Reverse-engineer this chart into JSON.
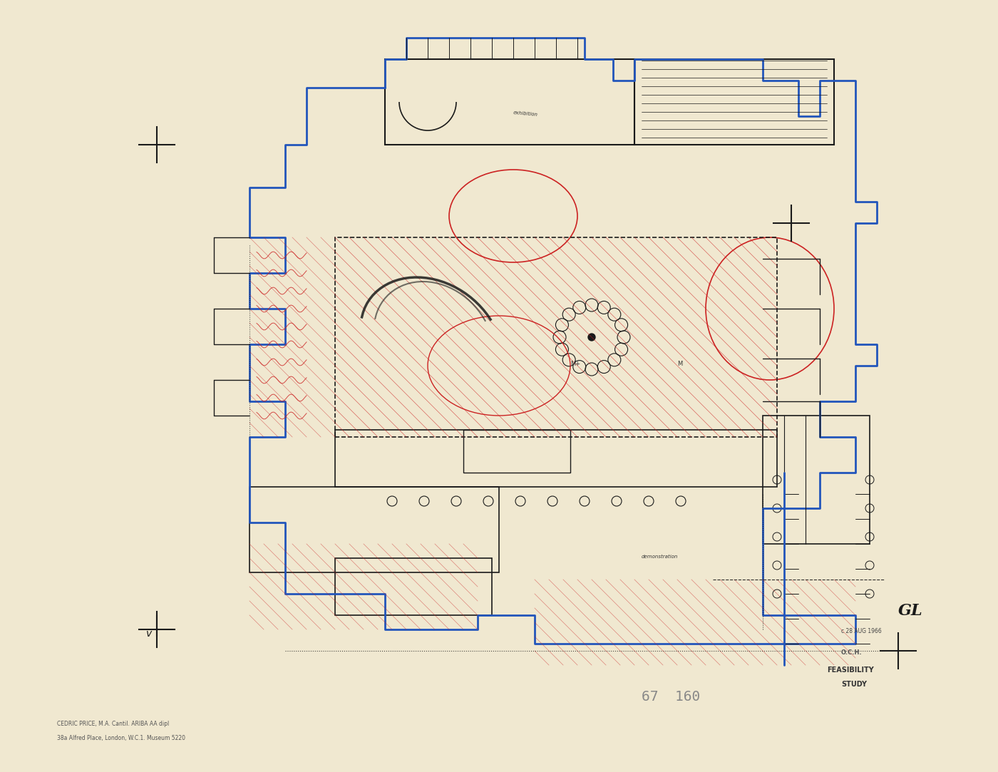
{
  "bg_color": "#e8e0cc",
  "paper_color": "#f0e8d0",
  "line_color_black": "#1a1a1a",
  "line_color_blue": "#2255bb",
  "line_color_red": "#cc2222",
  "bottom_left_text1": "CEDRIC PRICE, M.A. Cantil. ARIBA AA dipl",
  "bottom_left_text2": "38a Alfred Place, London, W.C.1. Museum 5220",
  "ref_number": "67  160",
  "date_text": "c 28 AUG 1966",
  "gl_text": "GL",
  "stamp_line1": "O.C.H.",
  "stamp_line2": "FEASIBILITY",
  "stamp_line3": "STUDY"
}
